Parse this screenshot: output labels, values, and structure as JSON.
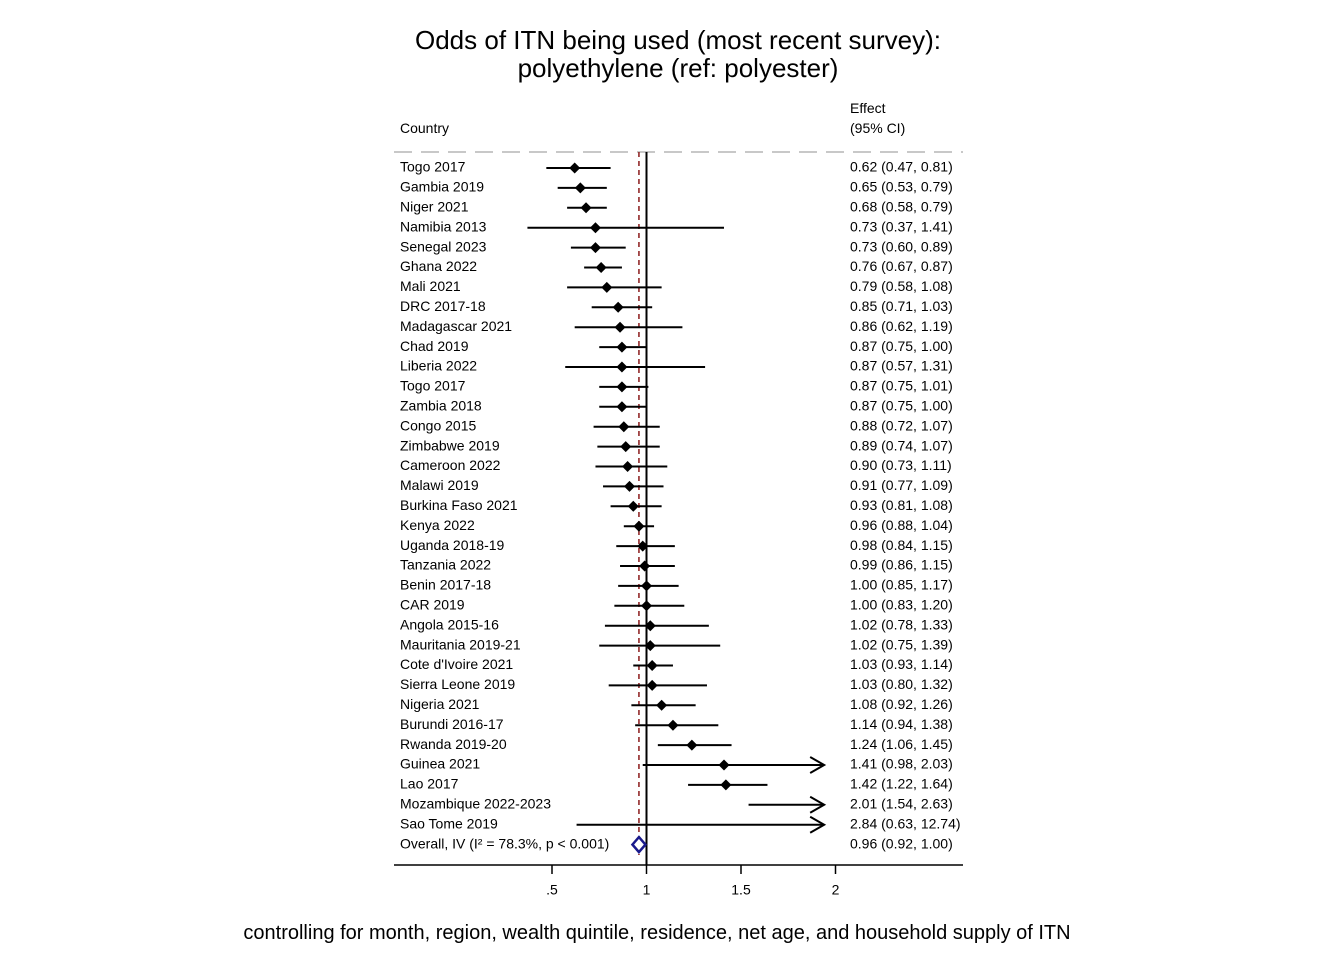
{
  "chart_data": {
    "type": "forest",
    "title": "Odds of ITN being used (most recent survey):",
    "subtitle": "polyethylene (ref: polyester)",
    "column_header_left": "Country",
    "column_header_right_line1": "Effect",
    "column_header_right_line2": "(95% CI)",
    "x_ticks": [
      ".5",
      "1",
      "1.5",
      "2"
    ],
    "x_tick_values": [
      0.5,
      1,
      1.5,
      2
    ],
    "xlim": [
      0.5,
      2
    ],
    "null_line": 1,
    "overall_line": 0.96,
    "rows": [
      {
        "label": "Togo 2017",
        "est": 0.62,
        "lo": 0.47,
        "hi": 0.81,
        "text": "0.62 (0.47, 0.81)"
      },
      {
        "label": "Gambia 2019",
        "est": 0.65,
        "lo": 0.53,
        "hi": 0.79,
        "text": "0.65 (0.53, 0.79)"
      },
      {
        "label": "Niger 2021",
        "est": 0.68,
        "lo": 0.58,
        "hi": 0.79,
        "text": "0.68 (0.58, 0.79)"
      },
      {
        "label": "Namibia 2013",
        "est": 0.73,
        "lo": 0.37,
        "hi": 1.41,
        "text": "0.73 (0.37, 1.41)"
      },
      {
        "label": "Senegal 2023",
        "est": 0.73,
        "lo": 0.6,
        "hi": 0.89,
        "text": "0.73 (0.60, 0.89)"
      },
      {
        "label": "Ghana 2022",
        "est": 0.76,
        "lo": 0.67,
        "hi": 0.87,
        "text": "0.76 (0.67, 0.87)"
      },
      {
        "label": "Mali 2021",
        "est": 0.79,
        "lo": 0.58,
        "hi": 1.08,
        "text": "0.79 (0.58, 1.08)"
      },
      {
        "label": "DRC 2017-18",
        "est": 0.85,
        "lo": 0.71,
        "hi": 1.03,
        "text": "0.85 (0.71, 1.03)"
      },
      {
        "label": "Madagascar 2021",
        "est": 0.86,
        "lo": 0.62,
        "hi": 1.19,
        "text": "0.86 (0.62, 1.19)"
      },
      {
        "label": "Chad 2019",
        "est": 0.87,
        "lo": 0.75,
        "hi": 1.0,
        "text": "0.87 (0.75, 1.00)"
      },
      {
        "label": "Liberia 2022",
        "est": 0.87,
        "lo": 0.57,
        "hi": 1.31,
        "text": "0.87 (0.57, 1.31)"
      },
      {
        "label": "Togo 2017",
        "est": 0.87,
        "lo": 0.75,
        "hi": 1.01,
        "text": "0.87 (0.75, 1.01)"
      },
      {
        "label": "Zambia 2018",
        "est": 0.87,
        "lo": 0.75,
        "hi": 1.0,
        "text": "0.87 (0.75, 1.00)"
      },
      {
        "label": "Congo 2015",
        "est": 0.88,
        "lo": 0.72,
        "hi": 1.07,
        "text": "0.88 (0.72, 1.07)"
      },
      {
        "label": "Zimbabwe 2019",
        "est": 0.89,
        "lo": 0.74,
        "hi": 1.07,
        "text": "0.89 (0.74, 1.07)"
      },
      {
        "label": "Cameroon 2022",
        "est": 0.9,
        "lo": 0.73,
        "hi": 1.11,
        "text": "0.90 (0.73, 1.11)"
      },
      {
        "label": "Malawi 2019",
        "est": 0.91,
        "lo": 0.77,
        "hi": 1.09,
        "text": "0.91 (0.77, 1.09)"
      },
      {
        "label": "Burkina Faso 2021",
        "est": 0.93,
        "lo": 0.81,
        "hi": 1.08,
        "text": "0.93 (0.81, 1.08)"
      },
      {
        "label": "Kenya 2022",
        "est": 0.96,
        "lo": 0.88,
        "hi": 1.04,
        "text": "0.96 (0.88, 1.04)"
      },
      {
        "label": "Uganda 2018-19",
        "est": 0.98,
        "lo": 0.84,
        "hi": 1.15,
        "text": "0.98 (0.84, 1.15)"
      },
      {
        "label": "Tanzania 2022",
        "est": 0.99,
        "lo": 0.86,
        "hi": 1.15,
        "text": "0.99 (0.86, 1.15)"
      },
      {
        "label": "Benin 2017-18",
        "est": 1.0,
        "lo": 0.85,
        "hi": 1.17,
        "text": "1.00 (0.85, 1.17)"
      },
      {
        "label": "CAR 2019",
        "est": 1.0,
        "lo": 0.83,
        "hi": 1.2,
        "text": "1.00 (0.83, 1.20)"
      },
      {
        "label": "Angola 2015-16",
        "est": 1.02,
        "lo": 0.78,
        "hi": 1.33,
        "text": "1.02 (0.78, 1.33)"
      },
      {
        "label": "Mauritania 2019-21",
        "est": 1.02,
        "lo": 0.75,
        "hi": 1.39,
        "text": "1.02 (0.75, 1.39)"
      },
      {
        "label": "Cote d'Ivoire 2021",
        "est": 1.03,
        "lo": 0.93,
        "hi": 1.14,
        "text": "1.03 (0.93, 1.14)"
      },
      {
        "label": "Sierra Leone 2019",
        "est": 1.03,
        "lo": 0.8,
        "hi": 1.32,
        "text": "1.03 (0.80, 1.32)"
      },
      {
        "label": "Nigeria 2021",
        "est": 1.08,
        "lo": 0.92,
        "hi": 1.26,
        "text": "1.08 (0.92, 1.26)"
      },
      {
        "label": "Burundi 2016-17",
        "est": 1.14,
        "lo": 0.94,
        "hi": 1.38,
        "text": "1.14 (0.94, 1.38)"
      },
      {
        "label": "Rwanda 2019-20",
        "est": 1.24,
        "lo": 1.06,
        "hi": 1.45,
        "text": "1.24 (1.06, 1.45)"
      },
      {
        "label": "Guinea 2021",
        "est": 1.41,
        "lo": 0.98,
        "hi": 2.03,
        "text": "1.41 (0.98, 2.03)"
      },
      {
        "label": "Lao 2017",
        "est": 1.42,
        "lo": 1.22,
        "hi": 1.64,
        "text": "1.42 (1.22, 1.64)"
      },
      {
        "label": "Mozambique 2022-2023",
        "est": 2.01,
        "lo": 1.54,
        "hi": 2.63,
        "text": "2.01 (1.54, 2.63)"
      },
      {
        "label": "Sao Tome 2019",
        "est": 2.84,
        "lo": 0.63,
        "hi": 12.74,
        "text": "2.84 (0.63, 12.74)"
      }
    ],
    "overall": {
      "label": "Overall, IV (I² = 78.3%, p < 0.001)",
      "est": 0.96,
      "lo": 0.92,
      "hi": 1.0,
      "text": "0.96 (0.92, 1.00)"
    },
    "footnote": "controlling for month, region, wealth quintile, residence, net age, and household supply of ITN",
    "colors": {
      "marker": "#000000",
      "overall_diamond": "#1a1a8c",
      "overall_line": "#8b1a1a",
      "separator": "#c8c8c8"
    }
  }
}
